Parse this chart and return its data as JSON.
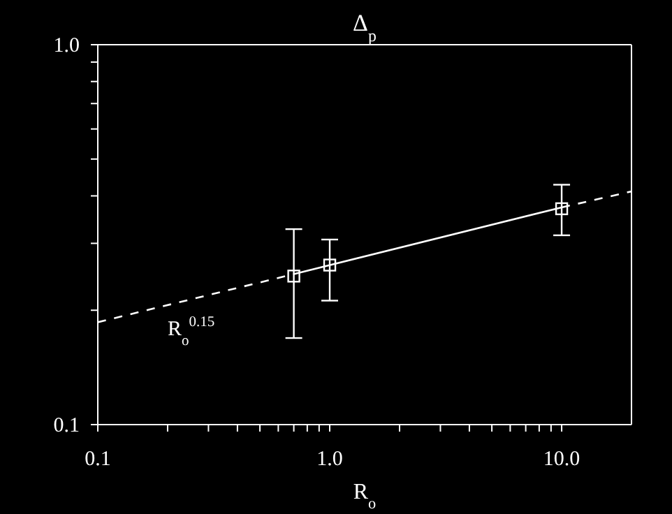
{
  "chart_data": {
    "type": "scatter",
    "title": "Δ$_{p}$",
    "xlabel": "R$_{o}$",
    "annotations": [
      "R$_{o}$$^{0.15}$"
    ],
    "log": "xy",
    "xlim": [
      0.1,
      20
    ],
    "ylim": [
      0.1,
      1.0
    ],
    "xticks": [
      0.1,
      {
        "value": 0.2,
        "label": null
      },
      {
        "value": 0.3,
        "label": null
      },
      {
        "value": 0.4,
        "label": null
      },
      {
        "value": 0.5,
        "label": null
      },
      {
        "value": 0.6,
        "label": null
      },
      {
        "value": 0.7,
        "label": null
      },
      {
        "value": 0.8,
        "label": null
      },
      {
        "value": 0.9,
        "label": null
      },
      {
        "value": 1,
        "label": "1.0"
      },
      {
        "value": 2,
        "label": null
      },
      {
        "value": 3,
        "label": null
      },
      {
        "value": 4,
        "label": null
      },
      {
        "value": 5,
        "label": null
      },
      {
        "value": 6,
        "label": null
      },
      {
        "value": 7,
        "label": null
      },
      {
        "value": 8,
        "label": null
      },
      {
        "value": 9,
        "label": null
      },
      {
        "value": 10,
        "label": "10.0"
      }
    ],
    "yticks": [
      0.1,
      {
        "value": 0.2,
        "label": null
      },
      {
        "value": 0.3,
        "label": null
      },
      {
        "value": 0.4,
        "label": null
      },
      {
        "value": 0.5,
        "label": null
      },
      {
        "value": 0.6,
        "label": null
      },
      {
        "value": 0.7,
        "label": null
      },
      {
        "value": 0.8,
        "label": null
      },
      {
        "value": 0.9,
        "label": null
      },
      {
        "value": 1,
        "label": "1.0"
      }
    ],
    "series": [
      {
        "color": "#ffffff",
        "marker": "square",
        "x": [
          0.7,
          1,
          10
        ],
        "values": [
          0.246,
          0.263,
          0.37
        ],
        "errors": [
          [
            0.169,
            0.327
          ],
          [
            0.212,
            0.307
          ],
          [
            0.315,
            0.428
          ]
        ]
      },
      {
        "type": "line",
        "color": "#ffffff",
        "line_style": "solid",
        "marker": "none",
        "x": [
          0.7,
          10
        ],
        "values": [
          0.249,
          0.373
        ]
      },
      {
        "type": "line",
        "color": "#ffffff",
        "line_style": "dashed",
        "marker": "none",
        "x": [
          0.1,
          0.7,
          1,
          10,
          20
        ],
        "values": [
          0.186,
          0.249,
          null,
          0.373,
          0.411
        ]
      }
    ]
  }
}
